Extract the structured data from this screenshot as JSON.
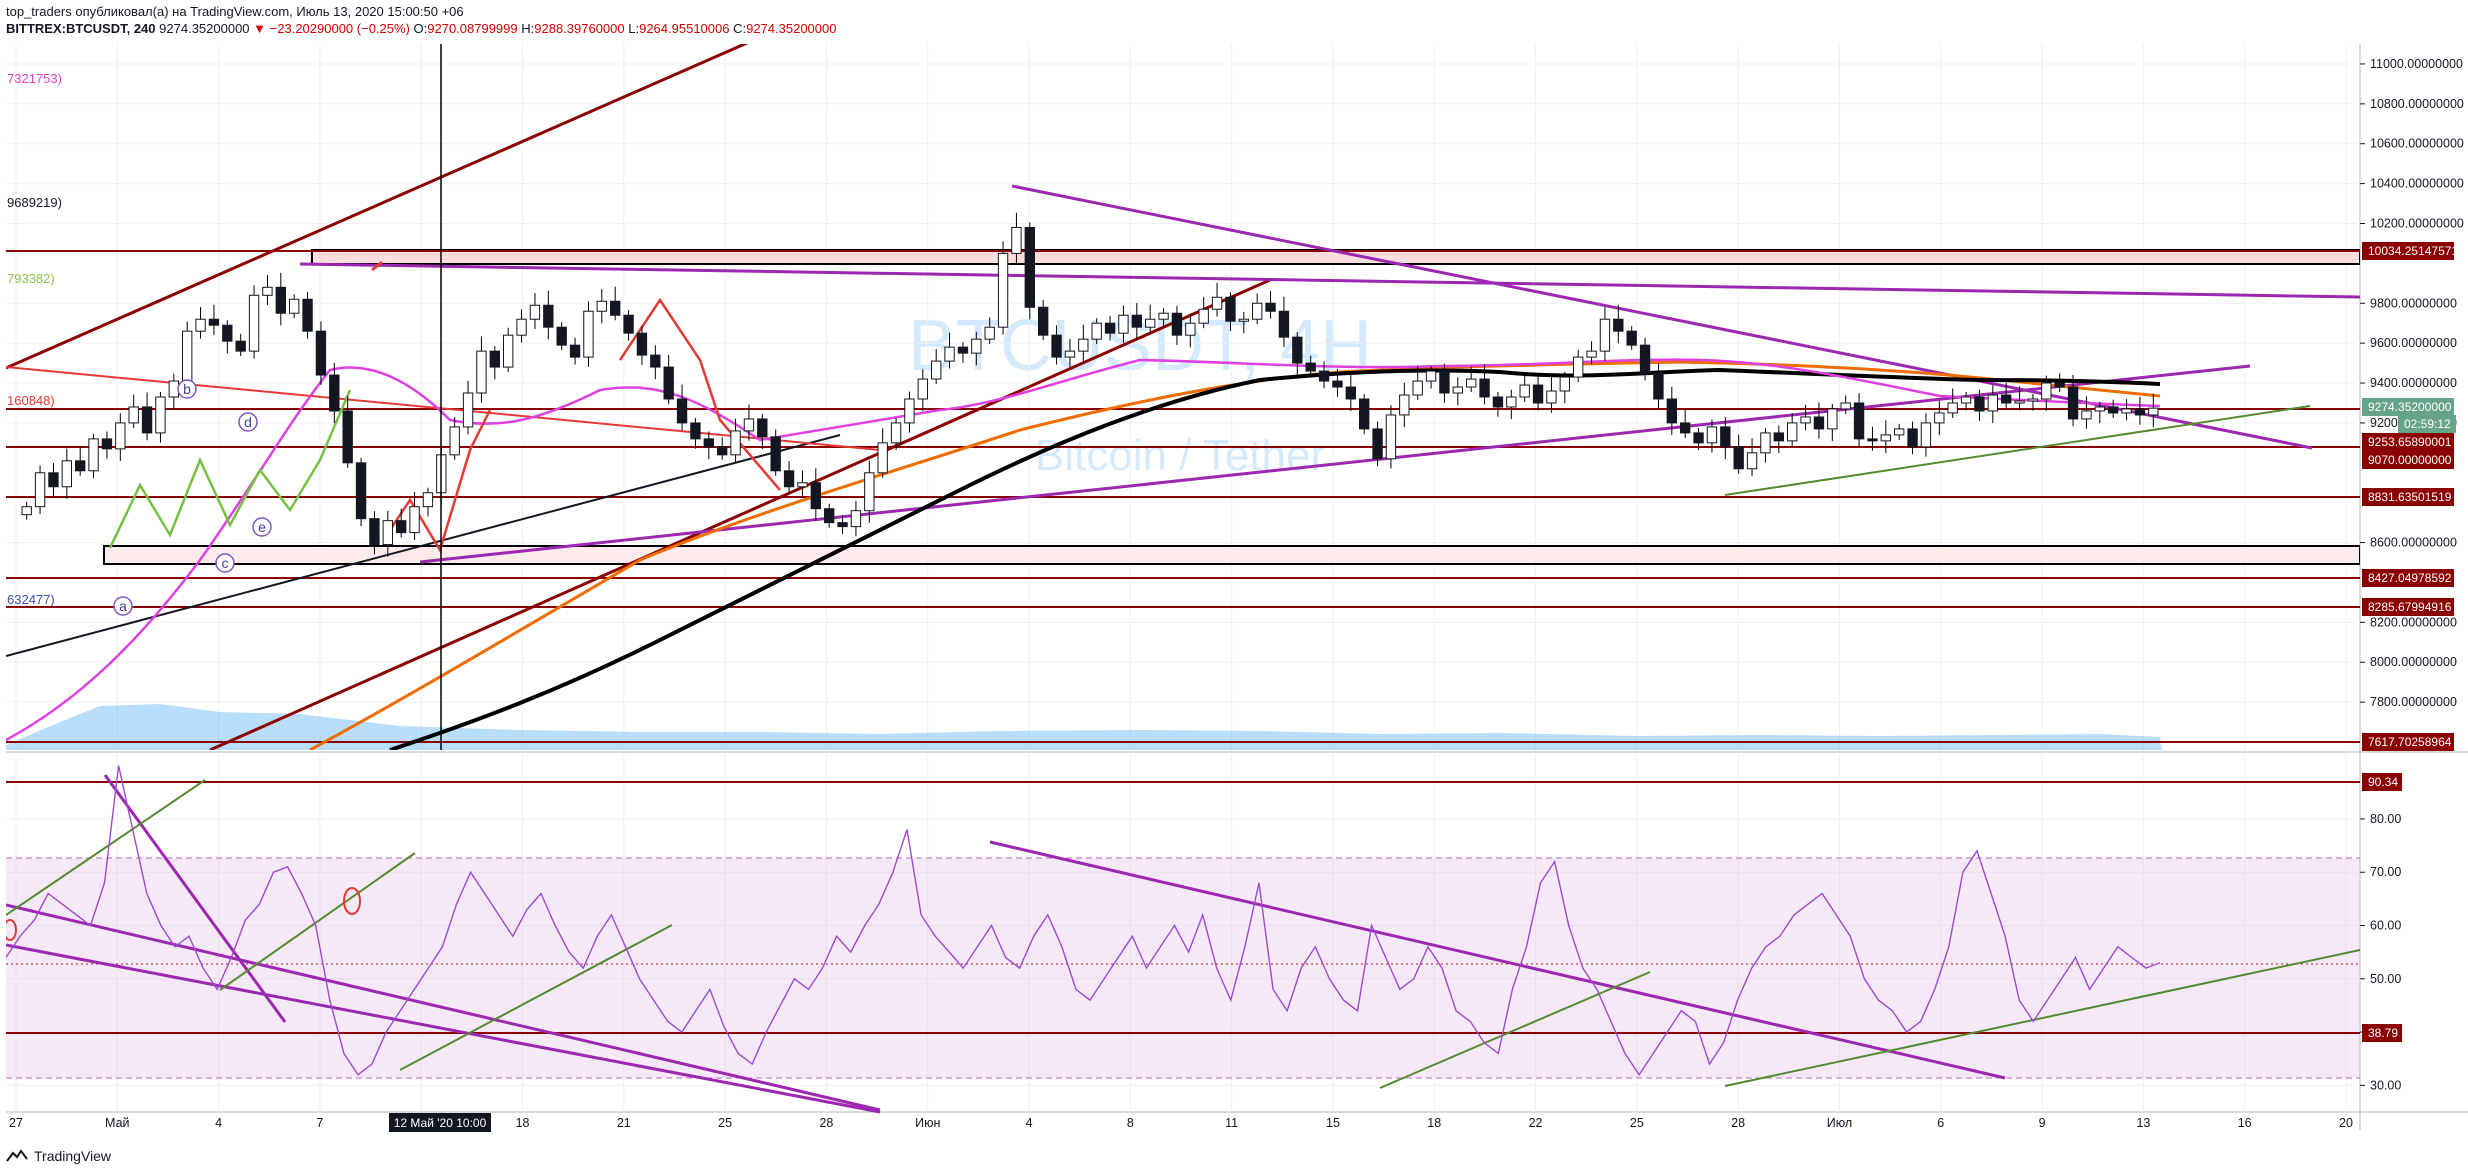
{
  "header": {
    "line1": "top_traders опубликовал(а) на TradingView.com, Июль 13, 2020 15:00:50 +06",
    "symbol": "BITTREX:BTCUSDT, 240",
    "price": "9274.35200000",
    "change": "−23.20290000 (−0.25%)",
    "o_label": "O:",
    "o_value": "9270.08799999",
    "h_label": "H:",
    "h_value": "9288.39760000",
    "l_label": "L:",
    "l_value": "9264.95510006",
    "c_label": "C:",
    "c_value": "9274.35200000"
  },
  "watermark": {
    "symbol": "BTCUSDT, 4H",
    "description": "Bitcoin / Tether"
  },
  "left_labels": [
    {
      "text": "7321753)",
      "color": "#e040c0"
    },
    {
      "text": "9689219)",
      "color": "#131722"
    },
    {
      "text": "793382)",
      "color": "#8bc34a"
    },
    {
      "text": "160848)",
      "color": "#e53935"
    },
    {
      "text": "632477)",
      "color": "#3f51b5"
    }
  ],
  "elliott_labels": [
    "b",
    "d",
    "e",
    "c",
    "a"
  ],
  "price_axis": {
    "ticks": [
      "11000.00000000",
      "10800.00000000",
      "10600.00000000",
      "10400.00000000",
      "10200.00000000",
      "9800.00000000",
      "9600.00000000",
      "9400.00000000",
      "9200.00000000",
      "8600.00000000",
      "8200.00000000",
      "8000.00000000",
      "7800.00000000"
    ],
    "badges": [
      {
        "text": "10034.25147571",
        "color": "#8b0000"
      },
      {
        "text": "9274.35200000",
        "color": "#66a487"
      },
      {
        "text": "02:59:12",
        "color": "#66a487"
      },
      {
        "text": "9253.65890001",
        "color": "#8b0000"
      },
      {
        "text": "9070.00000000",
        "color": "#8b0000"
      },
      {
        "text": "8831.63501519",
        "color": "#8b0000"
      },
      {
        "text": "8427.04978592",
        "color": "#8b0000"
      },
      {
        "text": "8285.67994916",
        "color": "#8b0000"
      },
      {
        "text": "7617.70258964",
        "color": "#8b0000"
      }
    ]
  },
  "rsi_axis": {
    "ticks": [
      "80.00",
      "70.00",
      "60.00",
      "50.00",
      "40.00",
      "30.00"
    ],
    "badges": [
      {
        "text": "90.34",
        "color": "#8b0000"
      },
      {
        "text": "38.79",
        "color": "#8b0000"
      }
    ]
  },
  "time_axis": {
    "ticks": [
      "27",
      "Май",
      "4",
      "7",
      "15",
      "18",
      "21",
      "25",
      "28",
      "Июн",
      "4",
      "8",
      "11",
      "15",
      "18",
      "22",
      "25",
      "28",
      "Июл",
      "6",
      "9",
      "13",
      "16",
      "20"
    ],
    "crosshair_label": "12 Май '20   10:00"
  },
  "footer": {
    "brand": "TradingView"
  },
  "chart_data": {
    "type": "candlestick",
    "title": "BITTREX:BTCUSDT, 240",
    "ylim": [
      7560,
      11100
    ],
    "rsi_ylim": [
      25,
      92
    ],
    "close_series": [
      8780,
      8950,
      8880,
      9010,
      8960,
      9120,
      9070,
      9200,
      9280,
      9150,
      9330,
      9410,
      9660,
      9720,
      9690,
      9610,
      9560,
      9840,
      9880,
      9750,
      9820,
      9660,
      9440,
      9260,
      9000,
      8720,
      8590,
      8710,
      8650,
      8780,
      8850,
      9040,
      9180,
      9350,
      9560,
      9480,
      9640,
      9720,
      9790,
      9680,
      9590,
      9530,
      9760,
      9810,
      9740,
      9650,
      9540,
      9480,
      9320,
      9200,
      9120,
      9080,
      9040,
      9160,
      9220,
      9130,
      8960,
      8880,
      8900,
      8770,
      8700,
      8680,
      8760,
      8950,
      9100,
      9200,
      9320,
      9420,
      9510,
      9580,
      9550,
      9620,
      9680,
      10050,
      10180,
      9780,
      9640,
      9530,
      9560,
      9620,
      9700,
      9650,
      9740,
      9680,
      9720,
      9750,
      9640,
      9700,
      9770,
      9830,
      9710,
      9720,
      9800,
      9760,
      9630,
      9500,
      9460,
      9410,
      9380,
      9320,
      9170,
      9020,
      9240,
      9340,
      9410,
      9460,
      9350,
      9380,
      9420,
      9330,
      9280,
      9330,
      9390,
      9300,
      9360,
      9430,
      9530,
      9560,
      9720,
      9660,
      9590,
      9450,
      9320,
      9200,
      9150,
      9100,
      9180,
      9080,
      8970,
      9050,
      9150,
      9110,
      9200,
      9230,
      9170,
      9270,
      9300,
      9120,
      9110,
      9140,
      9170,
      9080,
      9200,
      9250,
      9300,
      9330,
      9260,
      9340,
      9300,
      9310,
      9320,
      9400,
      9380,
      9220,
      9260,
      9280,
      9250,
      9270,
      9240,
      9274
    ],
    "rsi_series": [
      54,
      58,
      61,
      66,
      64,
      62,
      60,
      68,
      90,
      78,
      66,
      60,
      56,
      58,
      52,
      48,
      54,
      61,
      64,
      70,
      71,
      66,
      60,
      46,
      36,
      32,
      34,
      40,
      44,
      48,
      52,
      56,
      64,
      70,
      66,
      62,
      58,
      63,
      66,
      60,
      55,
      52,
      58,
      62,
      56,
      50,
      46,
      42,
      40,
      44,
      48,
      41,
      36,
      34,
      40,
      45,
      50,
      48,
      52,
      58,
      55,
      60,
      64,
      70,
      78,
      62,
      58,
      55,
      52,
      56,
      60,
      54,
      52,
      58,
      62,
      56,
      48,
      46,
      50,
      54,
      58,
      52,
      56,
      60,
      55,
      62,
      52,
      46,
      56,
      68,
      48,
      44,
      52,
      56,
      50,
      46,
      44,
      60,
      54,
      48,
      50,
      56,
      52,
      44,
      42,
      38,
      36,
      48,
      56,
      68,
      72,
      60,
      52,
      48,
      42,
      36,
      32,
      36,
      40,
      44,
      42,
      34,
      38,
      46,
      52,
      56,
      58,
      62,
      64,
      66,
      62,
      58,
      50,
      46,
      44,
      40,
      42,
      48,
      56,
      70,
      74,
      66,
      58,
      46,
      42,
      46,
      50,
      54,
      48,
      52,
      56,
      54,
      52,
      53
    ]
  }
}
